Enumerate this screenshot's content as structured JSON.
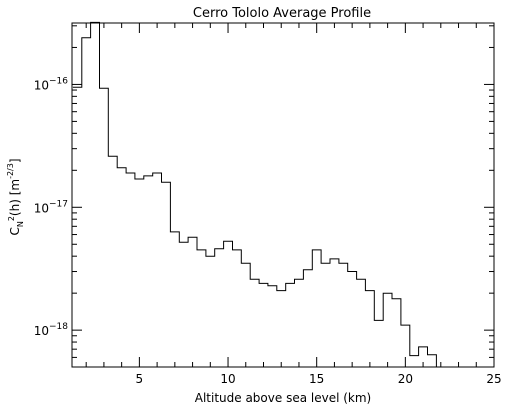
{
  "chart_data": {
    "type": "line",
    "title": "Cerro Tololo Average Profile",
    "xlabel": "Altitude above sea level (km)",
    "ylabel": {
      "prefix": "C",
      "sub": "N",
      "sup": "2",
      "suffix": "(h) [m",
      "unit_sup": "-2/3",
      "close": "]"
    },
    "xlim": [
      1.2,
      25
    ],
    "ylim_log10": [
      -18.3,
      -15.5
    ],
    "y_scale": "log",
    "x_ticks": [
      {
        "value": 5,
        "label": "5"
      },
      {
        "value": 10,
        "label": "10"
      },
      {
        "value": 15,
        "label": "15"
      },
      {
        "value": 20,
        "label": "20"
      },
      {
        "value": 25,
        "label": "25"
      }
    ],
    "y_ticks": [
      {
        "exp": -16,
        "label_base": "10",
        "label_exp": "−16"
      },
      {
        "exp": -17,
        "label_base": "10",
        "label_exp": "−17"
      },
      {
        "exp": -18,
        "label_base": "10",
        "label_exp": "−18"
      }
    ],
    "series": [
      {
        "step": "mid",
        "x": [
          1.5,
          2.0,
          2.5,
          3.0,
          3.5,
          4.0,
          4.5,
          5.0,
          5.5,
          6.0,
          6.5,
          7.0,
          7.5,
          8.0,
          8.5,
          9.0,
          9.5,
          10.0,
          10.5,
          11.0,
          11.5,
          12.0,
          12.5,
          13.0,
          13.5,
          14.0,
          14.5,
          15.0,
          15.5,
          16.0,
          16.5,
          17.0,
          17.5,
          18.0,
          18.5,
          19.0,
          19.5,
          20.0,
          20.5,
          21.0,
          21.5
        ],
        "y": [
          9.5e-17,
          2.4e-16,
          3.2e-16,
          9.3e-17,
          2.6e-17,
          2.1e-17,
          1.9e-17,
          1.7e-17,
          1.8e-17,
          1.9e-17,
          1.6e-17,
          6.3e-18,
          5.2e-18,
          5.7e-18,
          4.5e-18,
          4e-18,
          4.6e-18,
          5.3e-18,
          4.5e-18,
          3.5e-18,
          2.6e-18,
          2.4e-18,
          2.3e-18,
          2.1e-18,
          2.4e-18,
          2.6e-18,
          3.1e-18,
          4.5e-18,
          3.5e-18,
          3.8e-18,
          3.5e-18,
          3e-18,
          2.6e-18,
          2.1e-18,
          1.2e-18,
          2e-18,
          1.8e-18,
          1.1e-18,
          6.2e-19,
          7.3e-19,
          6.3e-19
        ]
      }
    ]
  }
}
